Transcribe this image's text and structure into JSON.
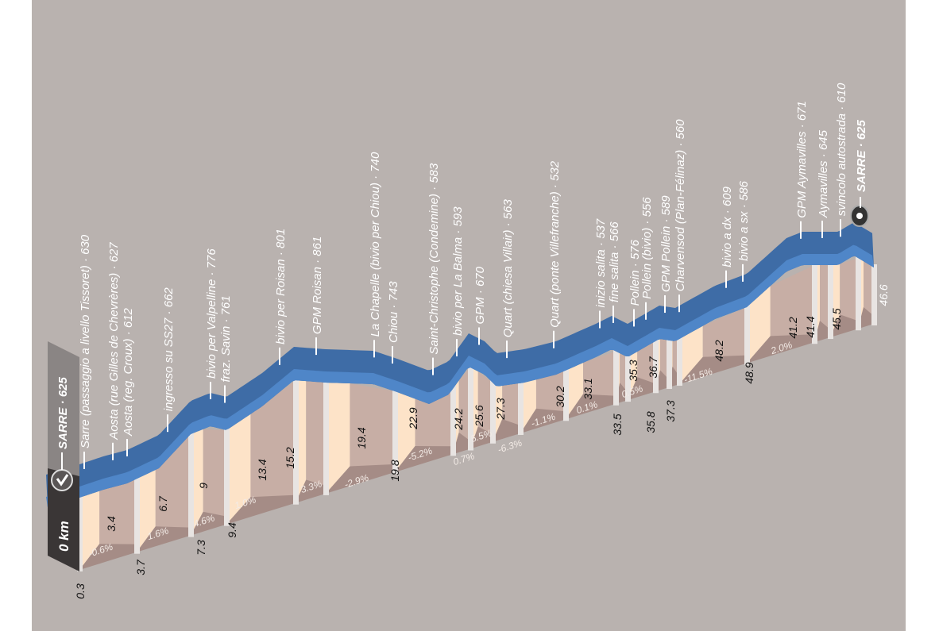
{
  "chart_data": {
    "type": "area",
    "title": "",
    "start": {
      "name": "SARRE",
      "altitude": 625,
      "km_label": "0 km"
    },
    "finish": {
      "name": "SARRE",
      "altitude": 625
    },
    "waypoints": [
      {
        "name": "SARRE",
        "altitude": 625
      },
      {
        "name": "Sarre (passaggio a livello Tissoret)",
        "altitude": 630
      },
      {
        "name": "Aosta (rue Gilles de Chevrères)",
        "altitude": 627
      },
      {
        "name": "Aosta (reg. Croux)",
        "altitude": 612
      },
      {
        "name": "ingresso su SS27",
        "altitude": 662
      },
      {
        "name": "bivio per Valpelline",
        "altitude": 776
      },
      {
        "name": "fraz. Savin",
        "altitude": 761
      },
      {
        "name": "bivio per Roisan",
        "altitude": 801
      },
      {
        "name": "GPM Roisan",
        "altitude": 861
      },
      {
        "name": "La Chapelle (bivio per Chiou)",
        "altitude": 740
      },
      {
        "name": "Chiou",
        "altitude": 743
      },
      {
        "name": "Saint-Christophe (Condemine)",
        "altitude": 583
      },
      {
        "name": "bivio per La Balma",
        "altitude": 593
      },
      {
        "name": "GPM",
        "altitude": 670
      },
      {
        "name": "Quart (chiesa Villair)",
        "altitude": 563
      },
      {
        "name": "Quart (ponte Villefranche)",
        "altitude": 532
      },
      {
        "name": "inizio salita",
        "altitude": 537
      },
      {
        "name": "fine salita",
        "altitude": 566
      },
      {
        "name": "Pollein",
        "altitude": 576
      },
      {
        "name": "Pollein (bivio)",
        "altitude": 556
      },
      {
        "name": "GPM Pollein",
        "altitude": 589
      },
      {
        "name": "Charvensod (Plan-Félinaz)",
        "altitude": 560
      },
      {
        "name": "bivio a dx",
        "altitude": 609
      },
      {
        "name": "bivio a sx",
        "altitude": 586
      },
      {
        "name": "GPM Aymavilles",
        "altitude": 671
      },
      {
        "name": "Aymavilles",
        "altitude": 645
      },
      {
        "name": "svincolo autostrada",
        "altitude": 610
      },
      {
        "name": "SARRE",
        "altitude": 625
      }
    ],
    "km_inner_labels": [
      "3.4",
      "6.7",
      "9",
      "13.4",
      "15.2",
      "19.4",
      "22.9",
      "24.2",
      "25.6",
      "27.3",
      "30.2",
      "33.1",
      "35.3",
      "36.7",
      "48.2",
      "41.2",
      "41.4",
      "45.5"
    ],
    "km_base_labels": [
      "0.3",
      "3.7",
      "7.3",
      "9.4",
      "19.8",
      "33.5",
      "35.8",
      "37.3",
      "48.9",
      "46.6"
    ],
    "gradients": [
      "-0.6%",
      "1.6%",
      "4.6%",
      "1.0%",
      "3.3%",
      "-2.9%",
      "-5.2%",
      "0.7%",
      "5.5%",
      "-6.3%",
      "-1.1%",
      "0.1%",
      "0.5%",
      "-11.5%",
      "2.0%"
    ],
    "colors": {
      "background": "#b9b2af",
      "road_top": "#3e6ca6",
      "road_edge": "#4f86c8",
      "panel_light": "#fde3c8",
      "panel_dark": "#c7aea5",
      "floor": "#a58c86"
    }
  }
}
